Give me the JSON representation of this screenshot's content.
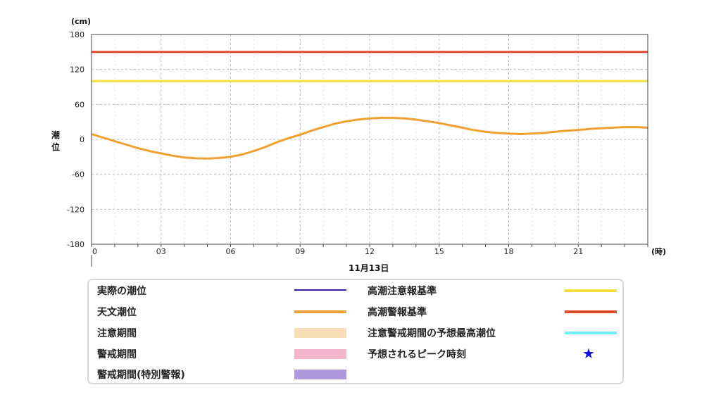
{
  "chart_data": {
    "type": "line",
    "y_unit": "(cm)",
    "x_unit": "(時)",
    "ylabel": "潮位",
    "date_label": "11月13日",
    "ylim": [
      -180,
      180
    ],
    "y_ticks": [
      180,
      120,
      60,
      0,
      -60,
      -120,
      -180
    ],
    "y_tick_labels": [
      "180",
      "120",
      "60",
      "0",
      "-60",
      "-120",
      "-180"
    ],
    "xlim": [
      0,
      24
    ],
    "x_ticks": [
      0,
      3,
      6,
      9,
      12,
      15,
      18,
      21
    ],
    "x_tick_labels": [
      "0",
      "03",
      "06",
      "09",
      "12",
      "15",
      "18",
      "21"
    ],
    "grid": true,
    "series": [
      {
        "name": "天文潮位",
        "color": "#f0a030",
        "x": [
          0,
          0.5,
          1,
          1.5,
          2,
          2.5,
          3,
          3.5,
          4,
          4.5,
          5,
          5.5,
          6,
          6.5,
          7,
          7.5,
          8,
          8.5,
          9,
          9.5,
          10,
          10.5,
          11,
          11.5,
          12,
          12.5,
          13,
          13.5,
          14,
          14.5,
          15,
          15.5,
          16,
          16.5,
          17,
          17.5,
          18,
          18.5,
          19,
          19.5,
          20,
          20.5,
          21,
          21.5,
          22,
          22.5,
          23,
          23.5,
          24
        ],
        "y": [
          9,
          3,
          -3,
          -9,
          -15,
          -20,
          -24,
          -28,
          -31,
          -32.5,
          -33,
          -32,
          -30,
          -26,
          -20,
          -13,
          -5,
          2,
          8,
          15,
          21,
          27,
          31,
          34,
          36,
          37,
          37,
          36,
          34,
          31,
          28,
          24,
          20,
          16,
          13,
          11,
          10,
          9,
          10,
          11,
          13,
          15,
          16,
          18,
          19,
          20,
          21,
          21,
          20
        ]
      },
      {
        "name": "高潮注意報基準",
        "color": "#f2e040",
        "x": [
          0,
          24
        ],
        "y": [
          100,
          100
        ]
      },
      {
        "name": "高潮警報基準",
        "color": "#e04a2a",
        "x": [
          0,
          24
        ],
        "y": [
          150,
          150
        ]
      }
    ]
  },
  "legend": {
    "items": [
      {
        "label": "実際の潮位",
        "kind": "line",
        "color": "#3a1aa8"
      },
      {
        "label": "天文潮位",
        "kind": "line",
        "color": "#f0a030"
      },
      {
        "label": "注意期間",
        "kind": "band",
        "color": "#f8deb4"
      },
      {
        "label": "警戒期間",
        "kind": "band",
        "color": "#f3b5cc"
      },
      {
        "label": "警戒期間(特別警報)",
        "kind": "band",
        "color": "#ad9adc"
      },
      {
        "label": "高潮注意報基準",
        "kind": "line",
        "color": "#f2e040"
      },
      {
        "label": "高潮警報基準",
        "kind": "line",
        "color": "#e04a2a"
      },
      {
        "label": "注意警戒期間の予想最高潮位",
        "kind": "line",
        "color": "#6ff0f6"
      },
      {
        "label": "予想されるピーク時刻",
        "kind": "star",
        "color": "#1111dd",
        "symbol": "★"
      }
    ]
  }
}
